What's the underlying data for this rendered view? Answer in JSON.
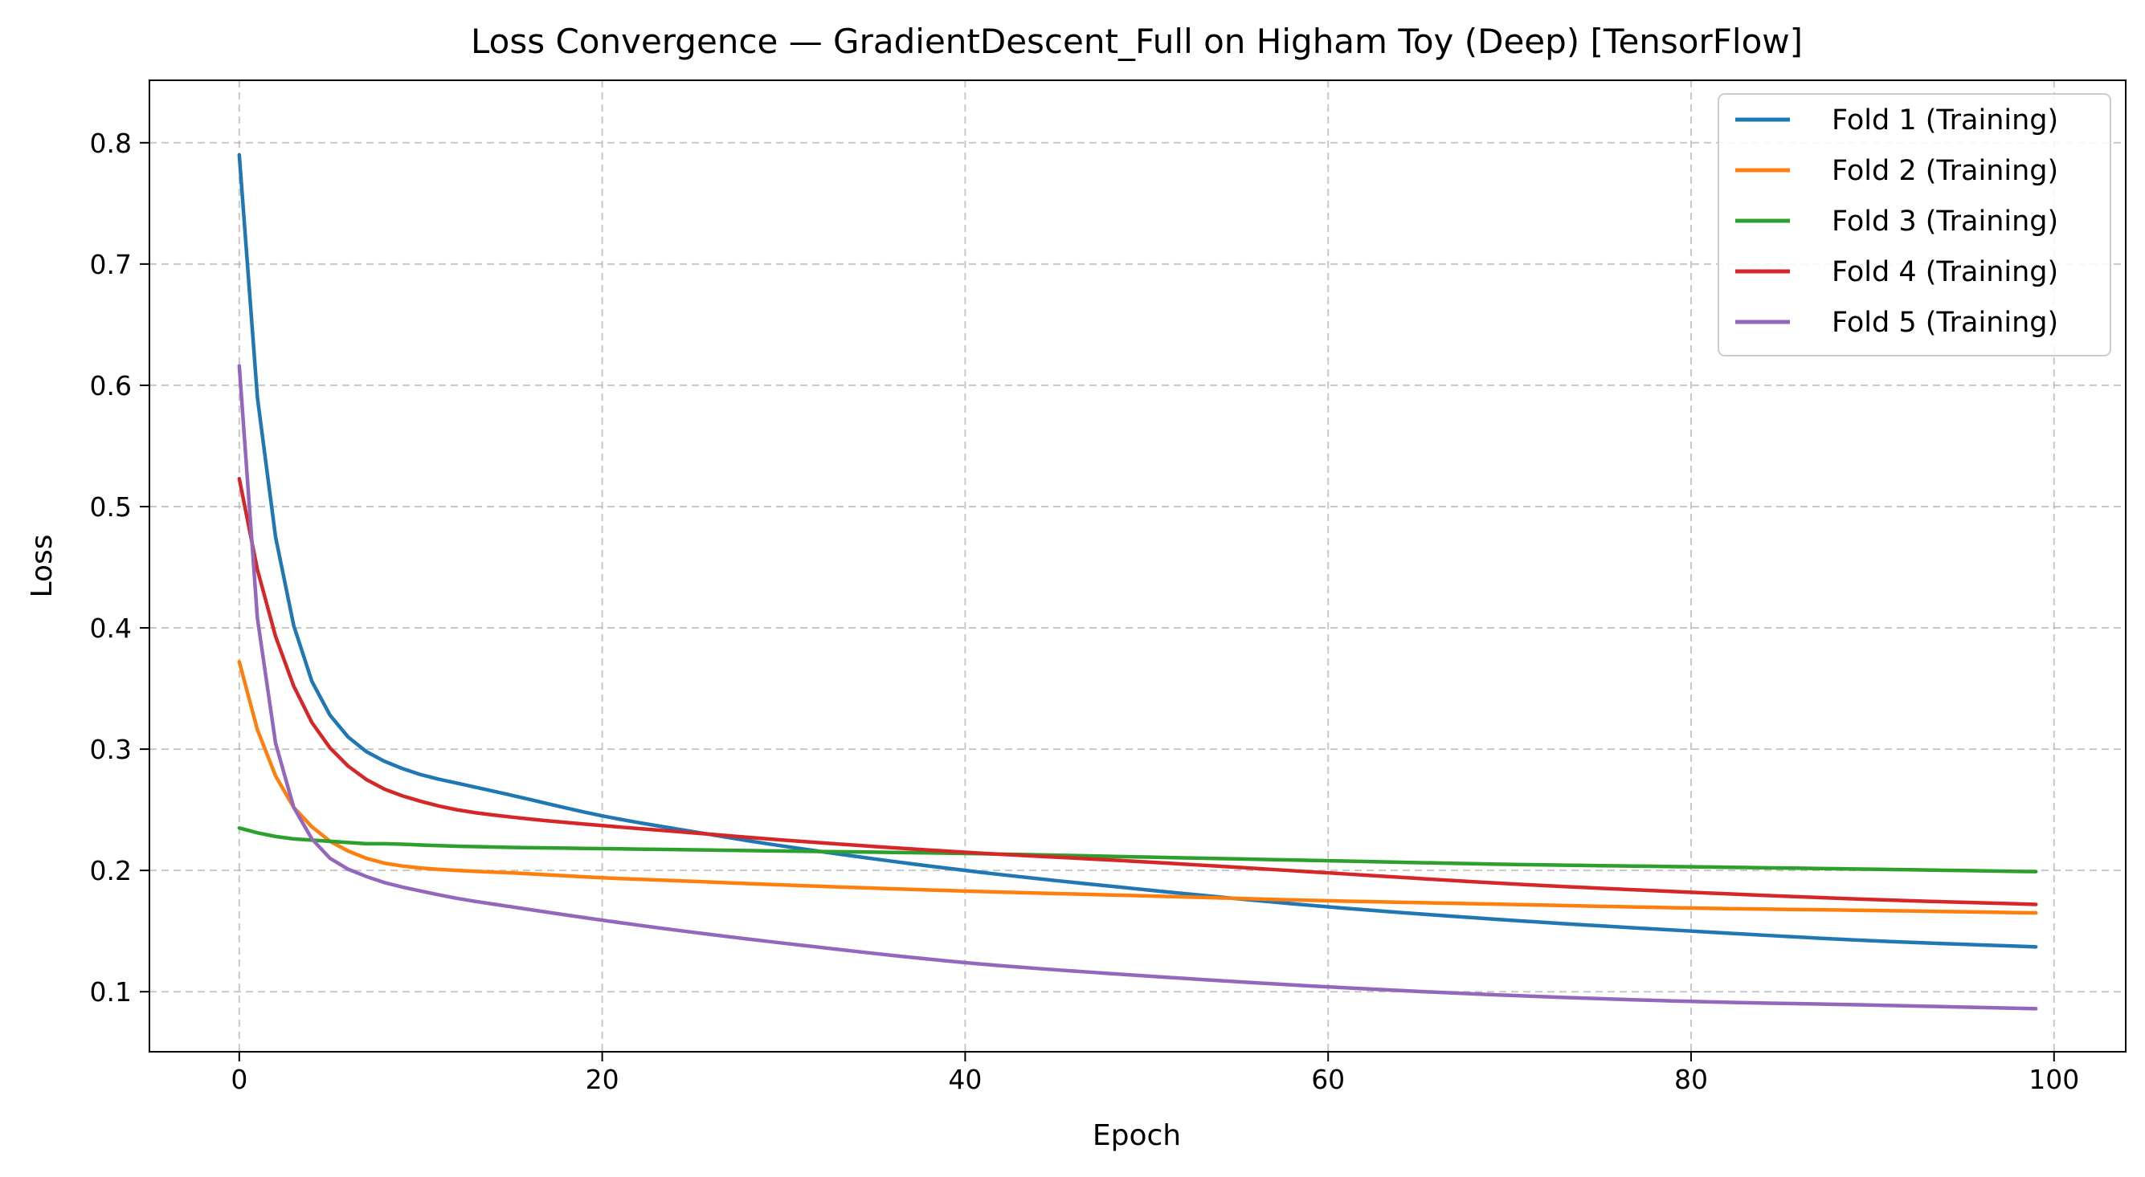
{
  "chart_data": {
    "type": "line",
    "title": "Loss Convergence — GradientDescent_Full on Higham Toy (Deep) [TensorFlow]",
    "xlabel": "Epoch",
    "ylabel": "Loss",
    "xlim": [
      -4.95,
      103.95
    ],
    "ylim": [
      0.0505,
      0.8515
    ],
    "xticks": [
      0,
      20,
      40,
      60,
      80,
      100
    ],
    "xtick_labels": [
      "0",
      "20",
      "40",
      "60",
      "80",
      "100"
    ],
    "yticks": [
      0.1,
      0.2,
      0.3,
      0.4,
      0.5,
      0.6,
      0.7,
      0.8
    ],
    "ytick_labels": [
      "0.1",
      "0.2",
      "0.3",
      "0.4",
      "0.5",
      "0.6",
      "0.7",
      "0.8"
    ],
    "grid": true,
    "legend_position": "top-right",
    "x_knots": [
      0,
      1,
      2,
      3,
      4,
      5,
      6,
      7,
      8,
      10,
      12,
      15,
      20,
      25,
      30,
      40,
      50,
      60,
      70,
      80,
      90,
      99
    ],
    "series": [
      {
        "name": "Fold 1 (Training)",
        "color": "#1f77b4",
        "values": [
          0.79,
          0.59,
          0.475,
          0.402,
          0.356,
          0.328,
          0.31,
          0.298,
          0.29,
          0.279,
          0.272,
          0.262,
          0.245,
          0.232,
          0.22,
          0.2,
          0.184,
          0.17,
          0.159,
          0.15,
          0.142,
          0.137
        ]
      },
      {
        "name": "Fold 2 (Training)",
        "color": "#ff7f0e",
        "values": [
          0.372,
          0.316,
          0.278,
          0.252,
          0.236,
          0.224,
          0.216,
          0.21,
          0.206,
          0.202,
          0.2,
          0.198,
          0.194,
          0.191,
          0.188,
          0.183,
          0.179,
          0.175,
          0.172,
          0.169,
          0.167,
          0.165
        ]
      },
      {
        "name": "Fold 3 (Training)",
        "color": "#2ca02c",
        "values": [
          0.235,
          0.231,
          0.228,
          0.226,
          0.225,
          0.224,
          0.223,
          0.222,
          0.222,
          0.221,
          0.22,
          0.219,
          0.218,
          0.217,
          0.216,
          0.214,
          0.211,
          0.208,
          0.205,
          0.203,
          0.201,
          0.199
        ]
      },
      {
        "name": "Fold 4 (Training)",
        "color": "#d62728",
        "values": [
          0.523,
          0.448,
          0.393,
          0.352,
          0.322,
          0.301,
          0.286,
          0.275,
          0.267,
          0.257,
          0.25,
          0.244,
          0.237,
          0.231,
          0.225,
          0.215,
          0.207,
          0.198,
          0.189,
          0.182,
          0.176,
          0.172
        ]
      },
      {
        "name": "Fold 5 (Training)",
        "color": "#9467bd",
        "values": [
          0.616,
          0.408,
          0.305,
          0.252,
          0.226,
          0.21,
          0.201,
          0.195,
          0.19,
          0.183,
          0.177,
          0.17,
          0.159,
          0.149,
          0.14,
          0.124,
          0.113,
          0.104,
          0.097,
          0.092,
          0.089,
          0.086
        ]
      }
    ]
  }
}
